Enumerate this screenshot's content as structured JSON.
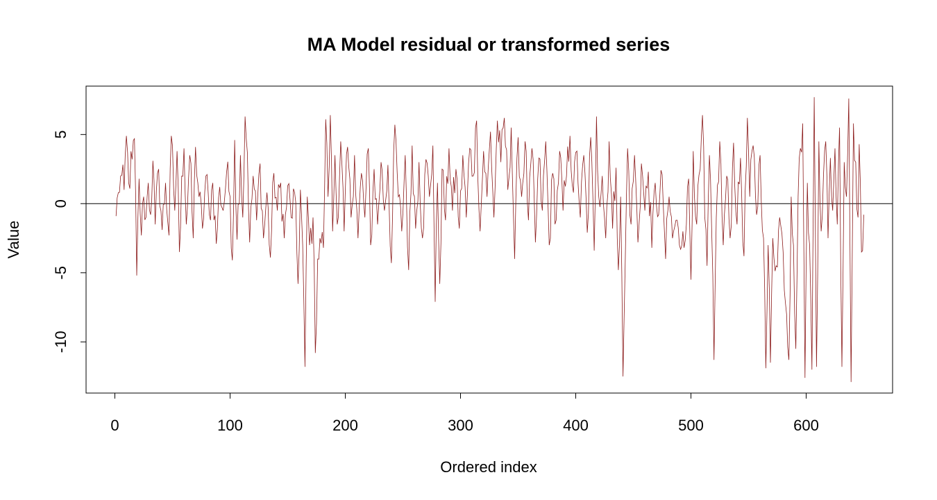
{
  "chart_data": {
    "type": "line",
    "title": "MA Model residual or transformed series",
    "xlabel": "Ordered index",
    "ylabel": "Value",
    "xlim": [
      -25,
      675
    ],
    "ylim": [
      -13.7,
      8.5
    ],
    "xticks": [
      0,
      100,
      200,
      300,
      400,
      500,
      600
    ],
    "yticks": [
      5,
      0,
      -5,
      -10
    ],
    "xtick_labels": [
      "0",
      "100",
      "200",
      "300",
      "400",
      "500",
      "600"
    ],
    "ytick_labels": [
      "5",
      "0",
      "-5",
      "-10"
    ],
    "reference_line": 0,
    "grid": false,
    "legend": "none",
    "n_points": 650,
    "series": [
      {
        "color": "#8b1a1a",
        "keypoints": [
          [
            1,
            -0.9
          ],
          [
            3,
            0.8
          ],
          [
            5,
            2.0
          ],
          [
            8,
            1.0
          ],
          [
            10,
            4.9
          ],
          [
            12,
            1.5
          ],
          [
            15,
            3.2
          ],
          [
            17,
            4.7
          ],
          [
            19,
            -5.2
          ],
          [
            21,
            1.8
          ],
          [
            23,
            -2.3
          ],
          [
            25,
            0.5
          ],
          [
            27,
            -1.0
          ],
          [
            29,
            1.5
          ],
          [
            31,
            -0.8
          ],
          [
            33,
            3.1
          ],
          [
            35,
            -1.5
          ],
          [
            38,
            2.5
          ],
          [
            41,
            -1.9
          ],
          [
            44,
            1.5
          ],
          [
            47,
            -2.3
          ],
          [
            49,
            4.9
          ],
          [
            52,
            -0.5
          ],
          [
            54,
            3.8
          ],
          [
            56,
            -3.5
          ],
          [
            58,
            2.0
          ],
          [
            60,
            4.0
          ],
          [
            62,
            -1.5
          ],
          [
            65,
            3.5
          ],
          [
            68,
            -2.5
          ],
          [
            70,
            4.1
          ],
          [
            73,
            0.5
          ],
          [
            76,
            -1.8
          ],
          [
            79,
            2.0
          ],
          [
            82,
            -0.8
          ],
          [
            85,
            1.5
          ],
          [
            88,
            -2.9
          ],
          [
            91,
            1.2
          ],
          [
            94,
            -0.5
          ],
          [
            97,
            2.3
          ],
          [
            100,
            0.5
          ],
          [
            102,
            -4.1
          ],
          [
            104,
            4.6
          ],
          [
            106,
            -2.6
          ],
          [
            109,
            3.5
          ],
          [
            111,
            -1.0
          ],
          [
            113,
            6.3
          ],
          [
            115,
            3.7
          ],
          [
            117,
            -2.8
          ],
          [
            120,
            2.0
          ],
          [
            123,
            -1.2
          ],
          [
            126,
            2.9
          ],
          [
            129,
            -2.5
          ],
          [
            132,
            0.8
          ],
          [
            135,
            -3.9
          ],
          [
            138,
            2.2
          ],
          [
            141,
            -0.5
          ],
          [
            144,
            1.5
          ],
          [
            147,
            -2.5
          ],
          [
            150,
            1.3
          ],
          [
            153,
            -1.0
          ],
          [
            156,
            0.8
          ],
          [
            159,
            -5.8
          ],
          [
            161,
            1.0
          ],
          [
            163,
            -3.0
          ],
          [
            165,
            -11.8
          ],
          [
            167,
            0.5
          ],
          [
            169,
            -3.0
          ],
          [
            172,
            -1.0
          ],
          [
            174,
            -10.8
          ],
          [
            176,
            -4.0
          ],
          [
            178,
            -2.5
          ],
          [
            181,
            -3.2
          ],
          [
            183,
            6.1
          ],
          [
            185,
            0.5
          ],
          [
            187,
            6.4
          ],
          [
            189,
            -2.0
          ],
          [
            191,
            3.5
          ],
          [
            193,
            -1.5
          ],
          [
            196,
            4.5
          ],
          [
            199,
            -2.0
          ],
          [
            202,
            4.1
          ],
          [
            205,
            -1.0
          ],
          [
            208,
            3.5
          ],
          [
            211,
            -2.5
          ],
          [
            214,
            2.2
          ],
          [
            217,
            -1.0
          ],
          [
            220,
            4.0
          ],
          [
            222,
            -3.0
          ],
          [
            225,
            2.5
          ],
          [
            228,
            -1.5
          ],
          [
            231,
            3.0
          ],
          [
            234,
            -0.5
          ],
          [
            237,
            2.8
          ],
          [
            240,
            -4.3
          ],
          [
            243,
            5.7
          ],
          [
            246,
            0.5
          ],
          [
            249,
            -2.0
          ],
          [
            252,
            3.5
          ],
          [
            255,
            -4.8
          ],
          [
            258,
            4.2
          ],
          [
            261,
            -1.8
          ],
          [
            264,
            3.0
          ],
          [
            267,
            -2.5
          ],
          [
            270,
            3.2
          ],
          [
            273,
            0.5
          ],
          [
            276,
            4.2
          ],
          [
            278,
            -7.1
          ],
          [
            280,
            1.5
          ],
          [
            282,
            -5.8
          ],
          [
            284,
            2.5
          ],
          [
            287,
            -1.2
          ],
          [
            290,
            4.0
          ],
          [
            293,
            -0.5
          ],
          [
            296,
            2.5
          ],
          [
            299,
            -1.8
          ],
          [
            302,
            3.5
          ],
          [
            305,
            -1.0
          ],
          [
            308,
            4.0
          ],
          [
            311,
            2.0
          ],
          [
            314,
            6.0
          ],
          [
            317,
            -2.0
          ],
          [
            320,
            3.8
          ],
          [
            323,
            0.5
          ],
          [
            326,
            5.2
          ],
          [
            329,
            -1.0
          ],
          [
            332,
            6.0
          ],
          [
            335,
            3.0
          ],
          [
            338,
            6.2
          ],
          [
            341,
            1.0
          ],
          [
            344,
            5.5
          ],
          [
            347,
            -4.0
          ],
          [
            350,
            4.8
          ],
          [
            353,
            0.5
          ],
          [
            356,
            4.5
          ],
          [
            359,
            -1.2
          ],
          [
            362,
            4.0
          ],
          [
            365,
            -2.8
          ],
          [
            368,
            3.3
          ],
          [
            371,
            -0.5
          ],
          [
            374,
            4.5
          ],
          [
            377,
            -3.0
          ],
          [
            380,
            2.2
          ],
          [
            383,
            -1.2
          ],
          [
            386,
            3.8
          ],
          [
            389,
            -0.5
          ],
          [
            392,
            2.0
          ],
          [
            395,
            4.9
          ],
          [
            398,
            0.8
          ],
          [
            401,
            3.8
          ],
          [
            404,
            -1.0
          ],
          [
            407,
            3.5
          ],
          [
            410,
            -2.1
          ],
          [
            413,
            4.8
          ],
          [
            416,
            -3.4
          ],
          [
            418,
            6.3
          ],
          [
            420,
            0.5
          ],
          [
            423,
            2.0
          ],
          [
            426,
            -2.5
          ],
          [
            429,
            4.5
          ],
          [
            432,
            -1.8
          ],
          [
            435,
            2.6
          ],
          [
            437,
            -4.8
          ],
          [
            439,
            0.5
          ],
          [
            441,
            -12.5
          ],
          [
            443,
            -4.0
          ],
          [
            445,
            4.0
          ],
          [
            448,
            -1.5
          ],
          [
            451,
            3.5
          ],
          [
            454,
            -2.8
          ],
          [
            457,
            2.9
          ],
          [
            460,
            -0.5
          ],
          [
            463,
            2.3
          ],
          [
            466,
            -3.2
          ],
          [
            469,
            1.5
          ],
          [
            472,
            -0.8
          ],
          [
            475,
            2.1
          ],
          [
            478,
            -4.0
          ],
          [
            481,
            0.5
          ],
          [
            484,
            -2.5
          ],
          [
            487,
            -1.2
          ],
          [
            490,
            -3.0
          ],
          [
            493,
            -2.0
          ],
          [
            496,
            -1.5
          ],
          [
            498,
            1.8
          ],
          [
            500,
            -5.5
          ],
          [
            502,
            3.8
          ],
          [
            505,
            -1.5
          ],
          [
            508,
            2.5
          ],
          [
            510,
            6.4
          ],
          [
            512,
            -1.0
          ],
          [
            514,
            -4.5
          ],
          [
            516,
            3.5
          ],
          [
            518,
            -2.0
          ],
          [
            520,
            -11.3
          ],
          [
            522,
            -1.0
          ],
          [
            525,
            4.5
          ],
          [
            528,
            -3.0
          ],
          [
            531,
            2.0
          ],
          [
            534,
            -2.5
          ],
          [
            537,
            4.4
          ],
          [
            540,
            -1.5
          ],
          [
            543,
            3.3
          ],
          [
            546,
            -3.8
          ],
          [
            549,
            6.2
          ],
          [
            551,
            0.5
          ],
          [
            554,
            4.2
          ],
          [
            557,
            -0.8
          ],
          [
            560,
            3.5
          ],
          [
            563,
            -2.5
          ],
          [
            565,
            -11.9
          ],
          [
            567,
            -3.0
          ],
          [
            569,
            -11.5
          ],
          [
            571,
            -2.5
          ],
          [
            574,
            -4.5
          ],
          [
            577,
            -1.0
          ],
          [
            580,
            -3.5
          ],
          [
            583,
            -8.0
          ],
          [
            585,
            -11.3
          ],
          [
            587,
            0.5
          ],
          [
            589,
            -3.0
          ],
          [
            591,
            -10.5
          ],
          [
            593,
            0.5
          ],
          [
            595,
            4.0
          ],
          [
            597,
            5.8
          ],
          [
            599,
            -12.6
          ],
          [
            601,
            1.5
          ],
          [
            603,
            -3.0
          ],
          [
            605,
            -12.0
          ],
          [
            607,
            7.7
          ],
          [
            609,
            -11.8
          ],
          [
            611,
            4.5
          ],
          [
            613,
            -2.0
          ],
          [
            615,
            2.0
          ],
          [
            617,
            4.5
          ],
          [
            619,
            -2.5
          ],
          [
            621,
            3.3
          ],
          [
            623,
            -0.5
          ],
          [
            625,
            4.0
          ],
          [
            627,
            -1.5
          ],
          [
            629,
            5.5
          ],
          [
            631,
            -11.8
          ],
          [
            633,
            3.0
          ],
          [
            635,
            0.5
          ],
          [
            637,
            7.6
          ],
          [
            639,
            -12.9
          ],
          [
            641,
            5.8
          ],
          [
            643,
            3.0
          ],
          [
            645,
            -1.0
          ],
          [
            646,
            4.3
          ],
          [
            648,
            -3.5
          ],
          [
            650,
            -0.8
          ]
        ]
      }
    ]
  }
}
